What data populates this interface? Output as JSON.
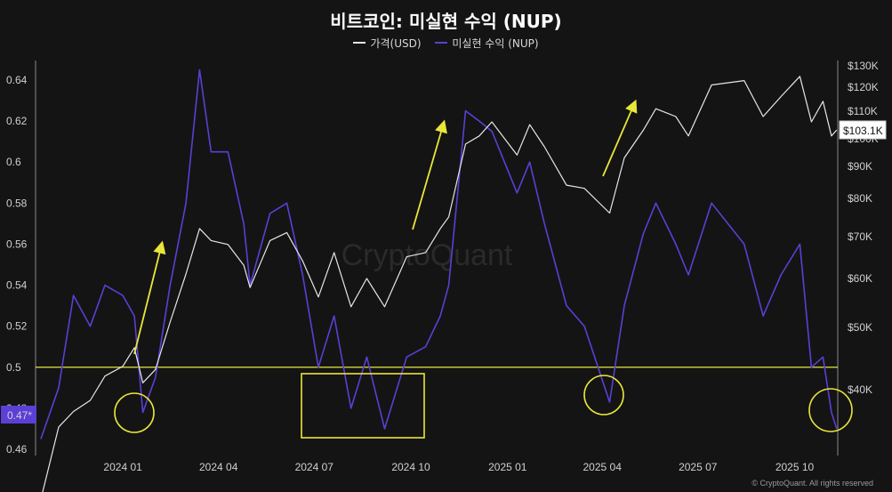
{
  "title": "비트코인: 미실현 수익 (NUP)",
  "watermark": "CryptoQuant",
  "footer": "© CryptoQuant. All rights reserved",
  "colors": {
    "background": "#141414",
    "price": "#e6e6e6",
    "nup": "#5b3fd6",
    "annotation": "#e8e63a",
    "current_badge_bg": "#5b3fd6"
  },
  "chart_data": {
    "type": "line",
    "title": "비트코인: 미실현 수익 (NUP)",
    "xlabel": "",
    "ylabel": "",
    "legend_position": "top-center",
    "grid": false,
    "x_ticks": [
      "2024 01",
      "2024 04",
      "2024 07",
      "2024 10",
      "2025 01",
      "2025 04",
      "2025 07",
      "2025 10"
    ],
    "left_axis": {
      "ticks": [
        "0.64",
        "0.62",
        "0.6",
        "0.58",
        "0.56",
        "0.54",
        "0.52",
        "0.5",
        "0.48",
        "0.46"
      ],
      "range": [
        0.46,
        0.645
      ]
    },
    "right_axis": {
      "ticks": [
        "$130K",
        "$120K",
        "$110K",
        "$100K",
        "$90K",
        "$80K",
        "$70K",
        "$60K",
        "$50K",
        "$40K"
      ],
      "scale": "log",
      "range": [
        30000,
        130000
      ]
    },
    "current_nup_label": "0.47*",
    "current_price_label": "$103.1K",
    "reference_line": {
      "axis": "left",
      "value": 0.5
    },
    "series": [
      {
        "name": "가격(USD)",
        "axis": "right",
        "points": [
          [
            "2023-10-15",
            27000
          ],
          [
            "2023-11-01",
            35000
          ],
          [
            "2023-11-15",
            37000
          ],
          [
            "2023-12-01",
            38500
          ],
          [
            "2023-12-15",
            42000
          ],
          [
            "2024-01-01",
            43500
          ],
          [
            "2024-01-12",
            46500
          ],
          [
            "2024-01-20",
            41000
          ],
          [
            "2024-02-01",
            43000
          ],
          [
            "2024-02-15",
            51000
          ],
          [
            "2024-03-01",
            61000
          ],
          [
            "2024-03-14",
            72000
          ],
          [
            "2024-03-25",
            69000
          ],
          [
            "2024-04-10",
            68000
          ],
          [
            "2024-04-25",
            63000
          ],
          [
            "2024-05-01",
            58000
          ],
          [
            "2024-05-20",
            69000
          ],
          [
            "2024-06-05",
            71000
          ],
          [
            "2024-06-20",
            64000
          ],
          [
            "2024-07-05",
            56000
          ],
          [
            "2024-07-20",
            66000
          ],
          [
            "2024-08-05",
            54000
          ],
          [
            "2024-08-20",
            60000
          ],
          [
            "2024-09-06",
            54000
          ],
          [
            "2024-09-27",
            65000
          ],
          [
            "2024-10-15",
            66000
          ],
          [
            "2024-10-29",
            72000
          ],
          [
            "2024-11-06",
            75000
          ],
          [
            "2024-11-22",
            98000
          ],
          [
            "2024-12-05",
            101000
          ],
          [
            "2024-12-17",
            106000
          ],
          [
            "2025-01-10",
            94000
          ],
          [
            "2025-01-22",
            105000
          ],
          [
            "2025-02-05",
            97000
          ],
          [
            "2025-02-26",
            84000
          ],
          [
            "2025-03-15",
            83000
          ],
          [
            "2025-04-08",
            76000
          ],
          [
            "2025-04-22",
            93000
          ],
          [
            "2025-05-10",
            103000
          ],
          [
            "2025-05-22",
            111000
          ],
          [
            "2025-06-10",
            108000
          ],
          [
            "2025-06-22",
            101000
          ],
          [
            "2025-07-14",
            121000
          ],
          [
            "2025-08-14",
            123000
          ],
          [
            "2025-09-01",
            108000
          ],
          [
            "2025-09-18",
            116000
          ],
          [
            "2025-10-06",
            125000
          ],
          [
            "2025-10-17",
            106000
          ],
          [
            "2025-10-28",
            114000
          ],
          [
            "2025-11-05",
            101000
          ],
          [
            "2025-11-10",
            103100
          ]
        ]
      },
      {
        "name": "미실현 수익 (NUP)",
        "axis": "left",
        "points": [
          [
            "2023-10-15",
            0.465
          ],
          [
            "2023-11-01",
            0.49
          ],
          [
            "2023-11-15",
            0.535
          ],
          [
            "2023-12-01",
            0.52
          ],
          [
            "2023-12-15",
            0.54
          ],
          [
            "2024-01-01",
            0.535
          ],
          [
            "2024-01-12",
            0.525
          ],
          [
            "2024-01-20",
            0.478
          ],
          [
            "2024-02-01",
            0.495
          ],
          [
            "2024-02-15",
            0.54
          ],
          [
            "2024-03-01",
            0.58
          ],
          [
            "2024-03-14",
            0.645
          ],
          [
            "2024-03-25",
            0.605
          ],
          [
            "2024-04-10",
            0.605
          ],
          [
            "2024-04-25",
            0.57
          ],
          [
            "2024-05-01",
            0.54
          ],
          [
            "2024-05-20",
            0.575
          ],
          [
            "2024-06-05",
            0.58
          ],
          [
            "2024-06-20",
            0.545
          ],
          [
            "2024-07-05",
            0.5
          ],
          [
            "2024-07-20",
            0.525
          ],
          [
            "2024-08-05",
            0.48
          ],
          [
            "2024-08-20",
            0.505
          ],
          [
            "2024-09-06",
            0.47
          ],
          [
            "2024-09-27",
            0.505
          ],
          [
            "2024-10-15",
            0.51
          ],
          [
            "2024-10-29",
            0.525
          ],
          [
            "2024-11-06",
            0.54
          ],
          [
            "2024-11-22",
            0.625
          ],
          [
            "2024-12-05",
            0.62
          ],
          [
            "2024-12-17",
            0.615
          ],
          [
            "2025-01-10",
            0.585
          ],
          [
            "2025-01-22",
            0.6
          ],
          [
            "2025-02-05",
            0.57
          ],
          [
            "2025-02-26",
            0.53
          ],
          [
            "2025-03-15",
            0.52
          ],
          [
            "2025-04-08",
            0.483
          ],
          [
            "2025-04-22",
            0.53
          ],
          [
            "2025-05-10",
            0.565
          ],
          [
            "2025-05-22",
            0.58
          ],
          [
            "2025-06-10",
            0.56
          ],
          [
            "2025-06-22",
            0.545
          ],
          [
            "2025-07-14",
            0.58
          ],
          [
            "2025-08-14",
            0.56
          ],
          [
            "2025-09-01",
            0.525
          ],
          [
            "2025-09-18",
            0.545
          ],
          [
            "2025-10-06",
            0.56
          ],
          [
            "2025-10-17",
            0.5
          ],
          [
            "2025-10-28",
            0.505
          ],
          [
            "2025-11-05",
            0.478
          ],
          [
            "2025-11-10",
            0.47
          ]
        ]
      }
    ]
  }
}
